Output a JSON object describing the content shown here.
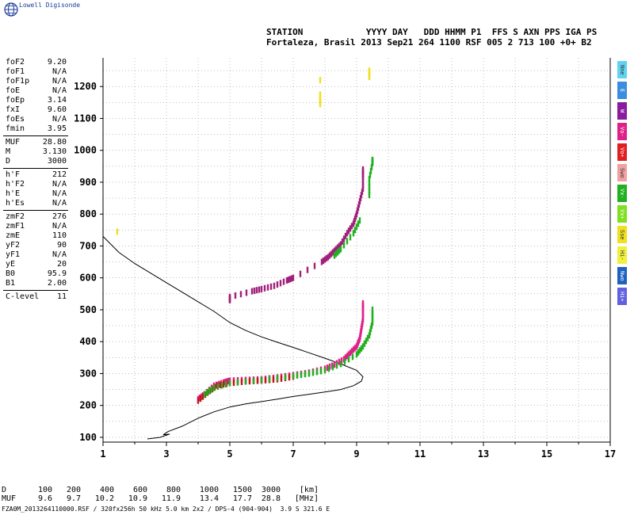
{
  "brand": "Lowell Digisonde",
  "header": {
    "line1": "STATION            YYYY DAY   DDD HHMM P1  FFS S AXN PPS IGA PS",
    "line2": "Fortaleza, Brasil 2013 Sep21 264 1100 RSF 005 2 713 100 +0+ B2"
  },
  "params": [
    [
      {
        "k": "foF2",
        "v": "9.20"
      },
      {
        "k": "foF1",
        "v": "N/A"
      },
      {
        "k": "foF1p",
        "v": "N/A"
      },
      {
        "k": "foE",
        "v": "N/A"
      },
      {
        "k": "foEp",
        "v": "3.14"
      },
      {
        "k": "fxI",
        "v": "9.60"
      },
      {
        "k": "foEs",
        "v": "N/A"
      },
      {
        "k": "fmin",
        "v": "3.95"
      }
    ],
    [
      {
        "k": "MUF",
        "v": "28.80"
      },
      {
        "k": "M",
        "v": "3.130"
      },
      {
        "k": "D",
        "v": "3000"
      }
    ],
    [
      {
        "k": "h'F",
        "v": "212"
      },
      {
        "k": "h'F2",
        "v": "N/A"
      },
      {
        "k": "h'E",
        "v": "N/A"
      },
      {
        "k": "h'Es",
        "v": "N/A"
      }
    ],
    [
      {
        "k": "zmF2",
        "v": "276"
      },
      {
        "k": "zmF1",
        "v": "N/A"
      },
      {
        "k": "zmE",
        "v": "110"
      },
      {
        "k": "yF2",
        "v": "90"
      },
      {
        "k": "yF1",
        "v": "N/A"
      },
      {
        "k": "yE",
        "v": "20"
      },
      {
        "k": "B0",
        "v": "95.9"
      },
      {
        "k": "B1",
        "v": "2.00"
      }
    ],
    [
      {
        "k": "C-level",
        "v": "11"
      }
    ]
  ],
  "legend": [
    {
      "label": "Nne",
      "color": "#5fd3f0"
    },
    {
      "label": "E",
      "color": "#3a8de0"
    },
    {
      "label": "W",
      "color": "#8a1aa0"
    },
    {
      "label": "Vo-",
      "color": "#e0208a"
    },
    {
      "label": "Vo+",
      "color": "#e02020"
    },
    {
      "label": "Swo",
      "color": "#f0a0a0"
    },
    {
      "label": "Vx-",
      "color": "#20b020"
    },
    {
      "label": "Vx+",
      "color": "#80e020"
    },
    {
      "label": "Sse",
      "color": "#f0e020"
    },
    {
      "label": "Hi-",
      "color": "#f0f040"
    },
    {
      "label": "Nwo",
      "color": "#2060c0"
    },
    {
      "label": "Hi+",
      "color": "#6060e0"
    }
  ],
  "footer": {
    "d_label": "D",
    "d_values": [
      "100",
      "200",
      "400",
      "600",
      "800",
      "1000",
      "1500",
      "3000"
    ],
    "d_unit": "[km]",
    "muf_label": "MUF",
    "muf_values": [
      "9.6",
      "9.7",
      "10.2",
      "10.9",
      "11.9",
      "13.4",
      "17.7",
      "28.8"
    ],
    "muf_unit": "[MHz]",
    "file": "FZA0M_2013264110000.RSF / 320fx256h 50 kHz 5.0 km 2x2 / DPS-4 (904-904)  3.9 S 321.6 E"
  },
  "chart_data": {
    "type": "scatter",
    "title": "",
    "xlabel": "",
    "ylabel": "",
    "xlim": [
      1,
      17
    ],
    "ylim": [
      85,
      1290
    ],
    "xticks": [
      1,
      3,
      5,
      7,
      9,
      11,
      13,
      15,
      17
    ],
    "yticks": [
      100,
      200,
      300,
      400,
      500,
      600,
      700,
      800,
      900,
      1000,
      1100,
      1200
    ],
    "grid": true,
    "series": [
      {
        "trace": "o-trace",
        "color": "#e0208a",
        "points": [
          [
            4.0,
            220
          ],
          [
            4.2,
            235
          ],
          [
            4.5,
            262
          ],
          [
            4.8,
            272
          ],
          [
            5.0,
            278
          ],
          [
            5.5,
            280
          ],
          [
            6.0,
            282
          ],
          [
            6.5,
            288
          ],
          [
            7.0,
            295
          ],
          [
            7.5,
            303
          ],
          [
            8.0,
            315
          ],
          [
            8.3,
            328
          ],
          [
            8.6,
            345
          ],
          [
            8.8,
            365
          ],
          [
            9.0,
            385
          ],
          [
            9.1,
            410
          ],
          [
            9.15,
            440
          ],
          [
            9.2,
            470
          ],
          [
            9.2,
            500
          ],
          [
            9.2,
            520
          ]
        ]
      },
      {
        "trace": "o-trace-red",
        "color": "#c01818",
        "points": [
          [
            4.0,
            215
          ],
          [
            4.3,
            240
          ],
          [
            4.6,
            262
          ],
          [
            5.0,
            270
          ],
          [
            5.5,
            275
          ],
          [
            6.0,
            278
          ],
          [
            6.5,
            282
          ],
          [
            7.0,
            290
          ]
        ]
      },
      {
        "trace": "x-trace",
        "color": "#20b020",
        "points": [
          [
            4.2,
            235
          ],
          [
            4.5,
            255
          ],
          [
            5.0,
            270
          ],
          [
            6.0,
            280
          ],
          [
            7.0,
            292
          ],
          [
            7.5,
            300
          ],
          [
            8.0,
            310
          ],
          [
            8.5,
            330
          ],
          [
            9.0,
            360
          ],
          [
            9.2,
            385
          ],
          [
            9.4,
            420
          ],
          [
            9.5,
            460
          ],
          [
            9.5,
            500
          ]
        ]
      },
      {
        "trace": "o-2hop",
        "color": "#a0207a",
        "points": [
          [
            5.0,
            530
          ],
          [
            5.0,
            540
          ],
          [
            5.7,
            558
          ],
          [
            6.0,
            565
          ],
          [
            6.4,
            575
          ],
          [
            6.8,
            592
          ],
          [
            7.0,
            600
          ],
          [
            7.9,
            650
          ],
          [
            8.1,
            665
          ],
          [
            8.3,
            685
          ],
          [
            8.5,
            705
          ],
          [
            8.7,
            740
          ],
          [
            8.9,
            770
          ],
          [
            9.0,
            800
          ],
          [
            9.1,
            840
          ],
          [
            9.2,
            880
          ],
          [
            9.2,
            920
          ],
          [
            9.2,
            940
          ]
        ]
      },
      {
        "trace": "x-2hop",
        "color": "#20b020",
        "points": [
          [
            8.3,
            670
          ],
          [
            8.5,
            690
          ],
          [
            8.9,
            740
          ],
          [
            9.1,
            780
          ],
          [
            9.4,
            860
          ],
          [
            9.4,
            910
          ],
          [
            9.5,
            960
          ],
          [
            9.5,
            970
          ]
        ]
      },
      {
        "trace": "sporadic",
        "color": "#f0e020",
        "points": [
          [
            1.45,
            745
          ],
          [
            7.85,
            1175
          ],
          [
            7.85,
            1145
          ],
          [
            7.85,
            1220
          ],
          [
            9.4,
            1230
          ],
          [
            9.4,
            1250
          ]
        ]
      }
    ],
    "profile": {
      "color": "#000000",
      "points": [
        [
          1.0,
          730
        ],
        [
          1.5,
          680
        ],
        [
          2.0,
          645
        ],
        [
          2.5,
          615
        ],
        [
          3.0,
          585
        ],
        [
          3.5,
          555
        ],
        [
          4.0,
          525
        ],
        [
          4.5,
          495
        ],
        [
          5.0,
          460
        ],
        [
          5.5,
          435
        ],
        [
          6.0,
          415
        ],
        [
          6.5,
          398
        ],
        [
          7.0,
          382
        ],
        [
          7.5,
          365
        ],
        [
          8.0,
          348
        ],
        [
          8.5,
          330
        ],
        [
          9.0,
          310
        ],
        [
          9.2,
          290
        ],
        [
          9.15,
          276
        ],
        [
          8.9,
          262
        ],
        [
          8.5,
          250
        ],
        [
          8.0,
          242
        ],
        [
          7.5,
          235
        ],
        [
          7.0,
          228
        ],
        [
          6.5,
          220
        ],
        [
          6.0,
          212
        ],
        [
          5.5,
          205
        ],
        [
          5.0,
          195
        ],
        [
          4.5,
          180
        ],
        [
          4.0,
          160
        ],
        [
          3.5,
          135
        ],
        [
          3.05,
          118
        ],
        [
          2.9,
          108
        ],
        [
          3.1,
          110
        ],
        [
          2.8,
          100
        ],
        [
          2.4,
          95
        ]
      ]
    }
  }
}
